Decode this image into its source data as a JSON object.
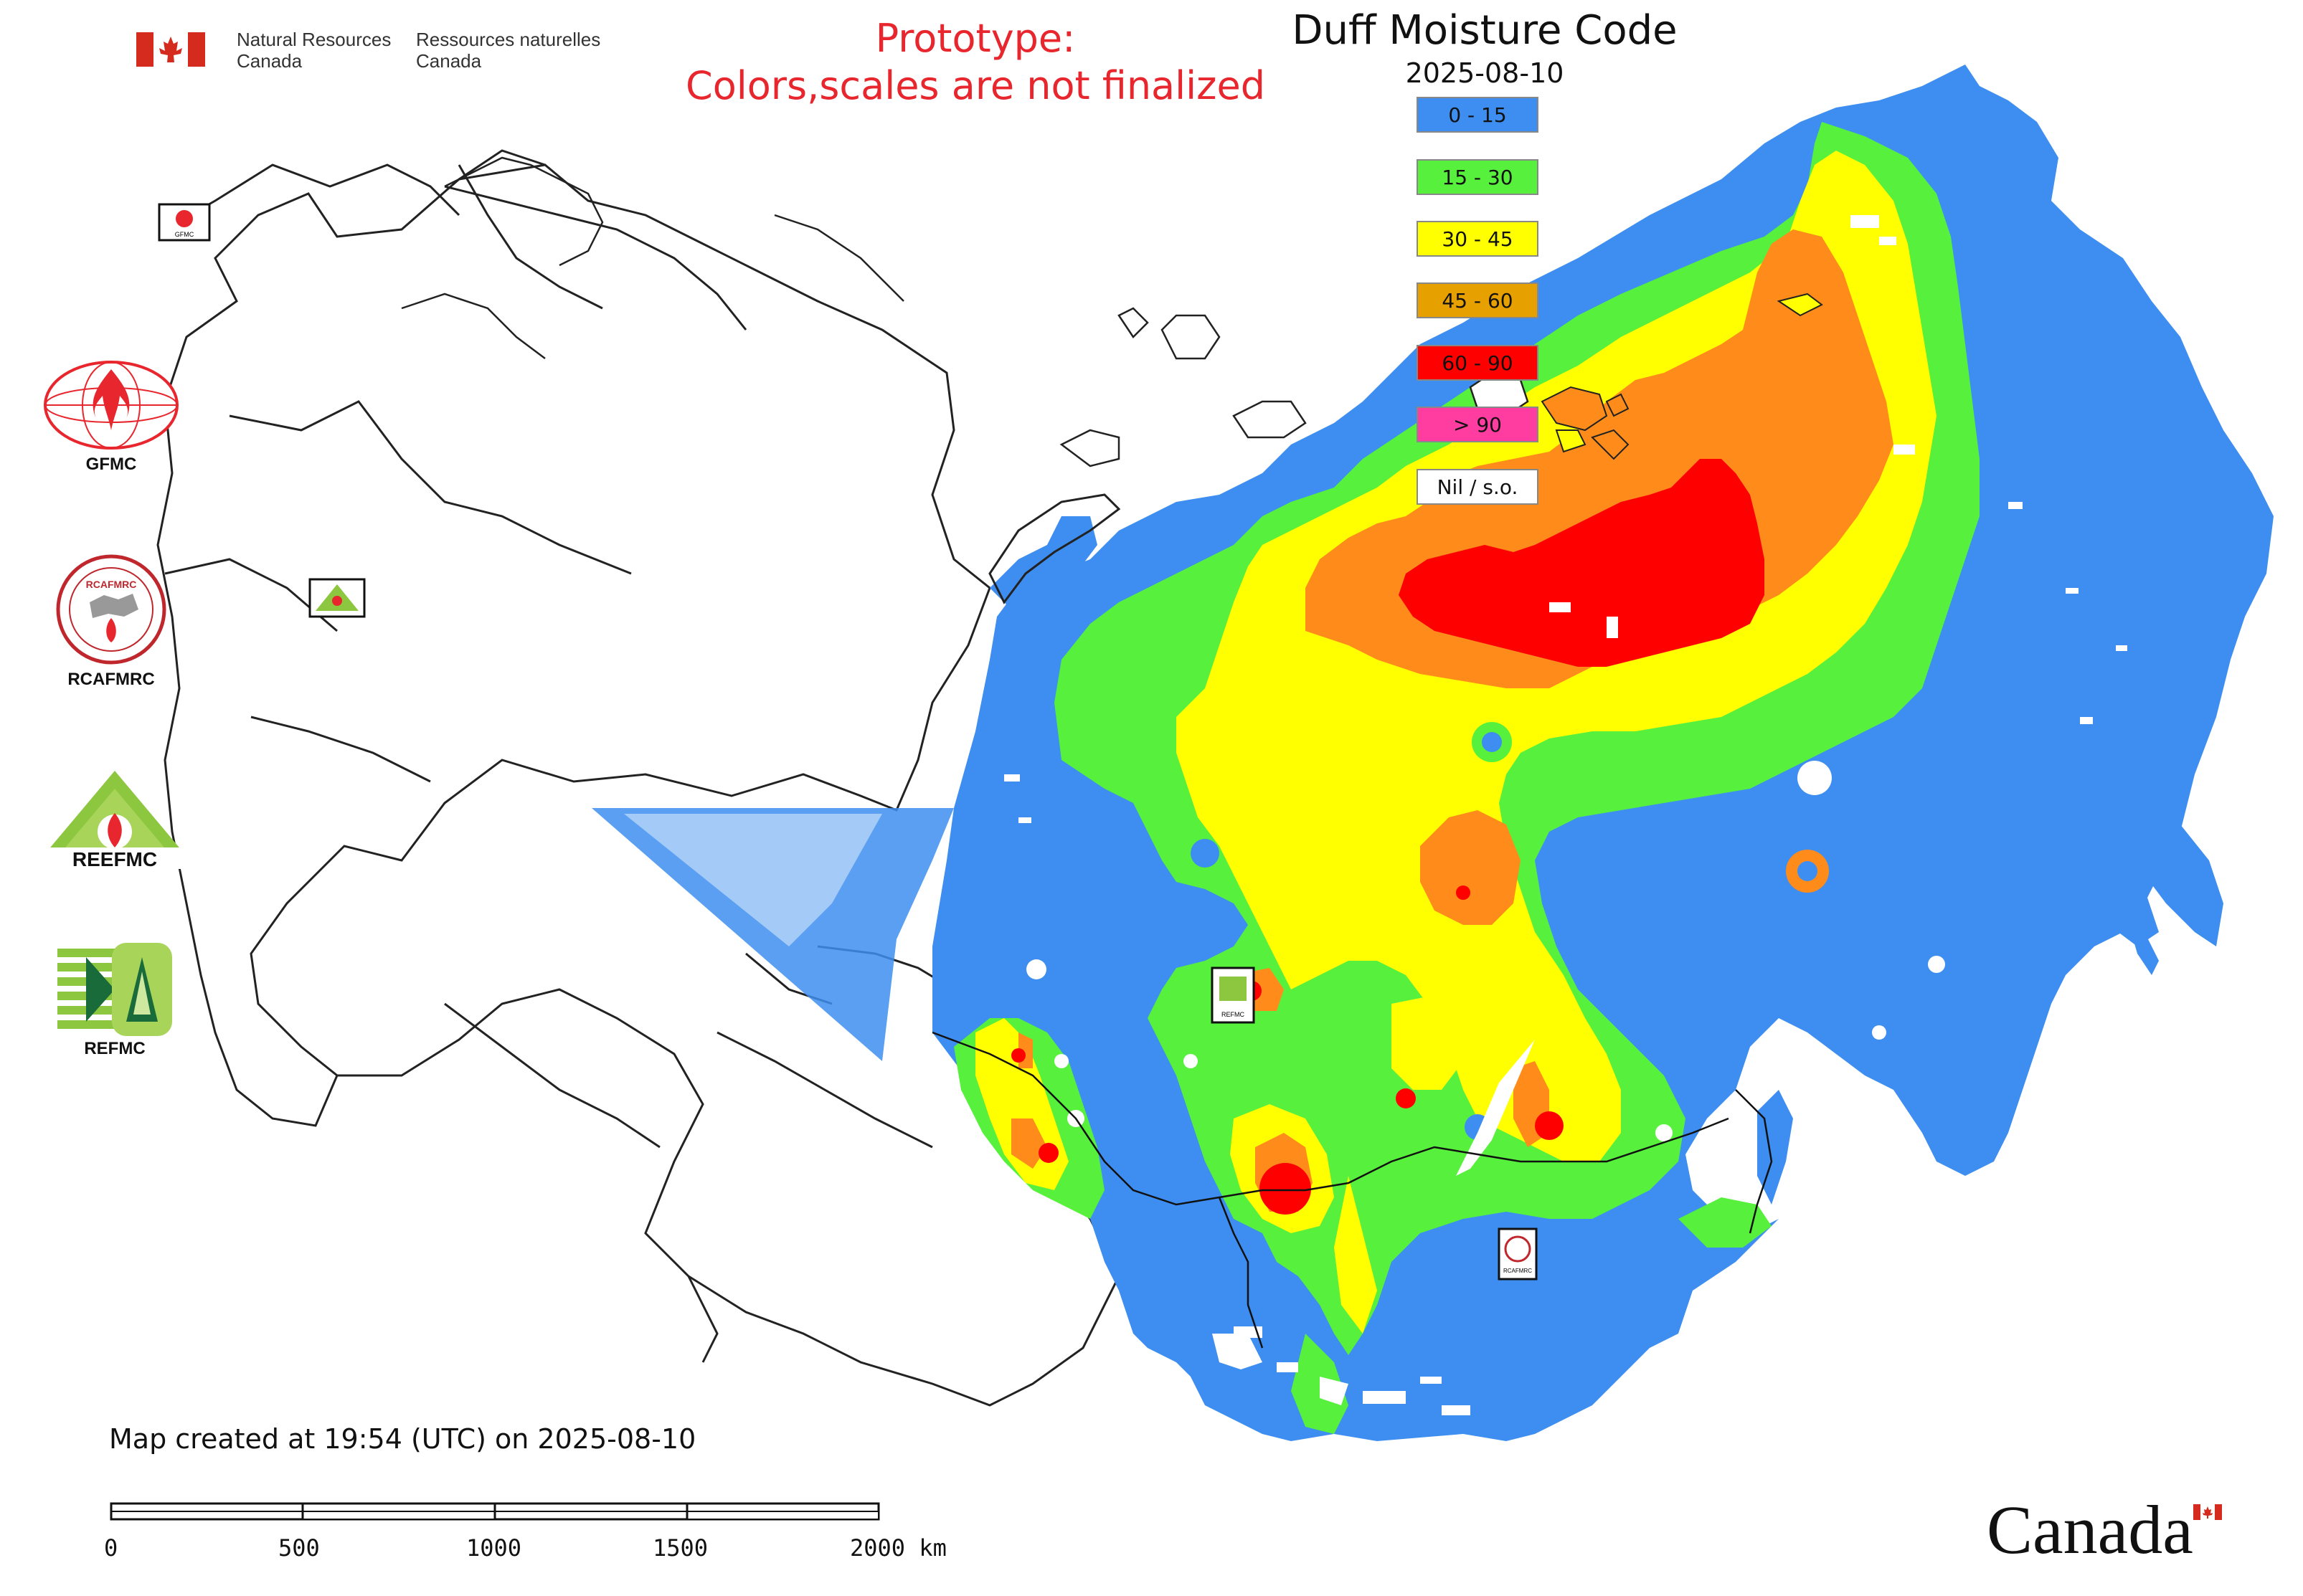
{
  "header": {
    "nrcan_en_1": "Natural Resources",
    "nrcan_en_2": "Canada",
    "nrcan_fr_1": "Ressources naturelles",
    "nrcan_fr_2": "Canada",
    "prototype_line1": "Prototype:",
    "prototype_line2": "Colors,scales are not finalized"
  },
  "map": {
    "title": "Duff Moisture Code",
    "date": "2025-08-10",
    "created_note": "Map created at 19:54 (UTC) on 2025-08-10",
    "wordmark": "Canada"
  },
  "legend": [
    {
      "label": "0 - 15",
      "color": "#3d8ef0"
    },
    {
      "label": "15 - 30",
      "color": "#57f03c"
    },
    {
      "label": "30 - 45",
      "color": "#ffff00"
    },
    {
      "label": "45 - 60",
      "color": "#e6a100"
    },
    {
      "label": "60 - 90",
      "color": "#ff0000"
    },
    {
      "label": "> 90",
      "color": "#ff3ca0"
    },
    {
      "label": "Nil / s.o.",
      "color": "#ffffff"
    }
  ],
  "logos": {
    "gfmc": "GFMC",
    "rcafmrc": "RCAFMRC",
    "reefmc_text": "REEFMC",
    "refmc": "REFMC"
  },
  "scale_bar": {
    "ticks": [
      "0",
      "500",
      "1000",
      "1500",
      "2000 km"
    ]
  },
  "colors": {
    "accent_red": "#e8262d",
    "flag_red": "#d52b1e"
  }
}
